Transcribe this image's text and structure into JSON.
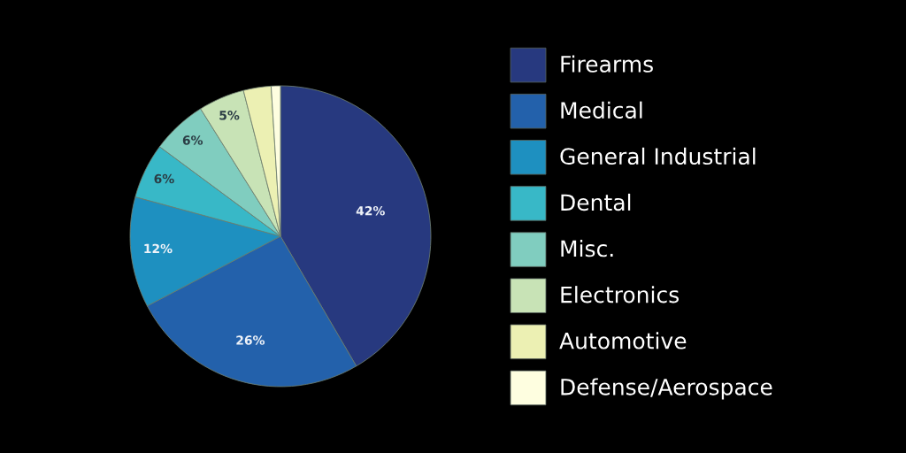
{
  "chart_data": {
    "type": "pie",
    "categories": [
      "Firearms",
      "Medical",
      "General Industrial",
      "Dental",
      "Misc.",
      "Electronics",
      "Automotive",
      "Defense/Aerospace"
    ],
    "values": [
      42,
      26,
      12,
      6,
      6,
      5,
      3,
      1
    ],
    "colors": [
      "#27397f",
      "#2361ab",
      "#1e90c0",
      "#38b8c7",
      "#80cdbf",
      "#c8e3b6",
      "#ecf0b3",
      "#fefee0"
    ],
    "value_labels": [
      "42%",
      "26%",
      "12%",
      "6%",
      "6%",
      "5%",
      null,
      null
    ],
    "legend": "right"
  }
}
